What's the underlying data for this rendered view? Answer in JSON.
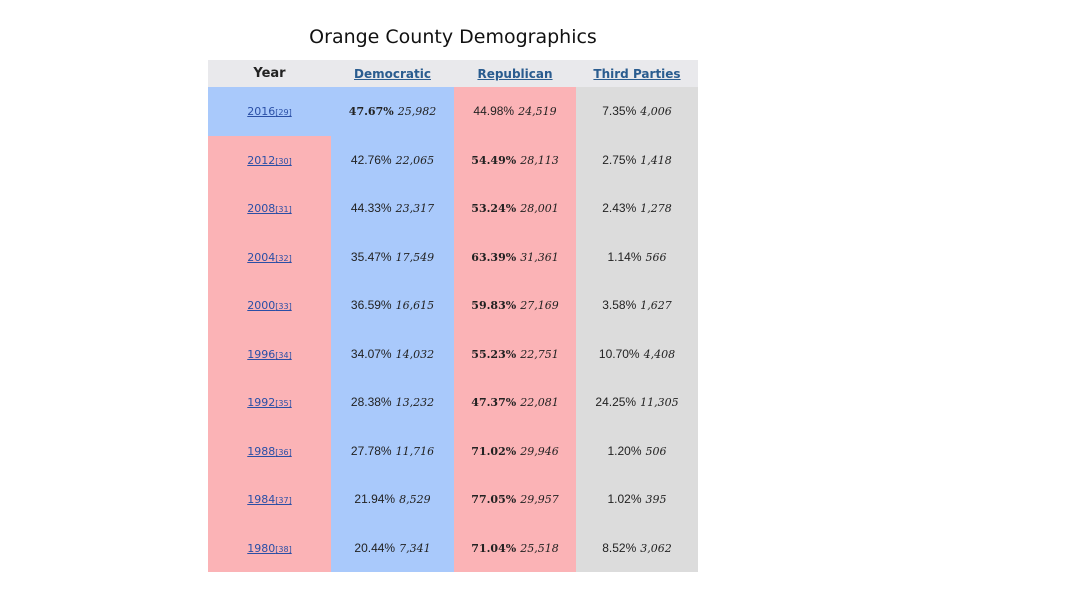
{
  "title": "Orange County Demographics",
  "columns": {
    "year": "Year",
    "democratic": "Democratic",
    "republican": "Republican",
    "third": "Third Parties"
  },
  "colors": {
    "democratic": "#a9c9fb",
    "republican": "#fbb3b6",
    "third": "#dcdcdc",
    "header": "#e9e9ec"
  },
  "rows": [
    {
      "year": "2016",
      "ref": "[29]",
      "winner": "democratic",
      "dem_pct": "47.67%",
      "dem_votes": "25,982",
      "rep_pct": "44.98%",
      "rep_votes": "24,519",
      "oth_pct": "7.35%",
      "oth_votes": "4,006"
    },
    {
      "year": "2012",
      "ref": "[30]",
      "winner": "republican",
      "dem_pct": "42.76%",
      "dem_votes": "22,065",
      "rep_pct": "54.49%",
      "rep_votes": "28,113",
      "oth_pct": "2.75%",
      "oth_votes": "1,418"
    },
    {
      "year": "2008",
      "ref": "[31]",
      "winner": "republican",
      "dem_pct": "44.33%",
      "dem_votes": "23,317",
      "rep_pct": "53.24%",
      "rep_votes": "28,001",
      "oth_pct": "2.43%",
      "oth_votes": "1,278"
    },
    {
      "year": "2004",
      "ref": "[32]",
      "winner": "republican",
      "dem_pct": "35.47%",
      "dem_votes": "17,549",
      "rep_pct": "63.39%",
      "rep_votes": "31,361",
      "oth_pct": "1.14%",
      "oth_votes": "566"
    },
    {
      "year": "2000",
      "ref": "[33]",
      "winner": "republican",
      "dem_pct": "36.59%",
      "dem_votes": "16,615",
      "rep_pct": "59.83%",
      "rep_votes": "27,169",
      "oth_pct": "3.58%",
      "oth_votes": "1,627"
    },
    {
      "year": "1996",
      "ref": "[34]",
      "winner": "republican",
      "dem_pct": "34.07%",
      "dem_votes": "14,032",
      "rep_pct": "55.23%",
      "rep_votes": "22,751",
      "oth_pct": "10.70%",
      "oth_votes": "4,408"
    },
    {
      "year": "1992",
      "ref": "[35]",
      "winner": "republican",
      "dem_pct": "28.38%",
      "dem_votes": "13,232",
      "rep_pct": "47.37%",
      "rep_votes": "22,081",
      "oth_pct": "24.25%",
      "oth_votes": "11,305"
    },
    {
      "year": "1988",
      "ref": "[36]",
      "winner": "republican",
      "dem_pct": "27.78%",
      "dem_votes": "11,716",
      "rep_pct": "71.02%",
      "rep_votes": "29,946",
      "oth_pct": "1.20%",
      "oth_votes": "506"
    },
    {
      "year": "1984",
      "ref": "[37]",
      "winner": "republican",
      "dem_pct": "21.94%",
      "dem_votes": "8,529",
      "rep_pct": "77.05%",
      "rep_votes": "29,957",
      "oth_pct": "1.02%",
      "oth_votes": "395"
    },
    {
      "year": "1980",
      "ref": "[38]",
      "winner": "republican",
      "dem_pct": "20.44%",
      "dem_votes": "7,341",
      "rep_pct": "71.04%",
      "rep_votes": "25,518",
      "oth_pct": "8.52%",
      "oth_votes": "3,062"
    }
  ],
  "chart_data": {
    "type": "table",
    "title": "Orange County Demographics",
    "categories": [
      "2016",
      "2012",
      "2008",
      "2004",
      "2000",
      "1996",
      "1992",
      "1988",
      "1984",
      "1980"
    ],
    "series": [
      {
        "name": "Democratic",
        "values": [
          47.67,
          42.76,
          44.33,
          35.47,
          36.59,
          34.07,
          28.38,
          27.78,
          21.94,
          20.44
        ],
        "votes": [
          25982,
          22065,
          23317,
          17549,
          16615,
          14032,
          13232,
          11716,
          8529,
          7341
        ]
      },
      {
        "name": "Republican",
        "values": [
          44.98,
          54.49,
          53.24,
          63.39,
          59.83,
          55.23,
          47.37,
          71.02,
          77.05,
          71.04
        ],
        "votes": [
          24519,
          28113,
          28001,
          31361,
          27169,
          22751,
          22081,
          29946,
          29957,
          25518
        ]
      },
      {
        "name": "Third Parties",
        "values": [
          7.35,
          2.75,
          2.43,
          1.14,
          3.58,
          10.7,
          24.25,
          1.2,
          1.02,
          8.52
        ],
        "votes": [
          4006,
          1418,
          1278,
          566,
          1627,
          4408,
          11305,
          506,
          395,
          3062
        ]
      }
    ]
  }
}
